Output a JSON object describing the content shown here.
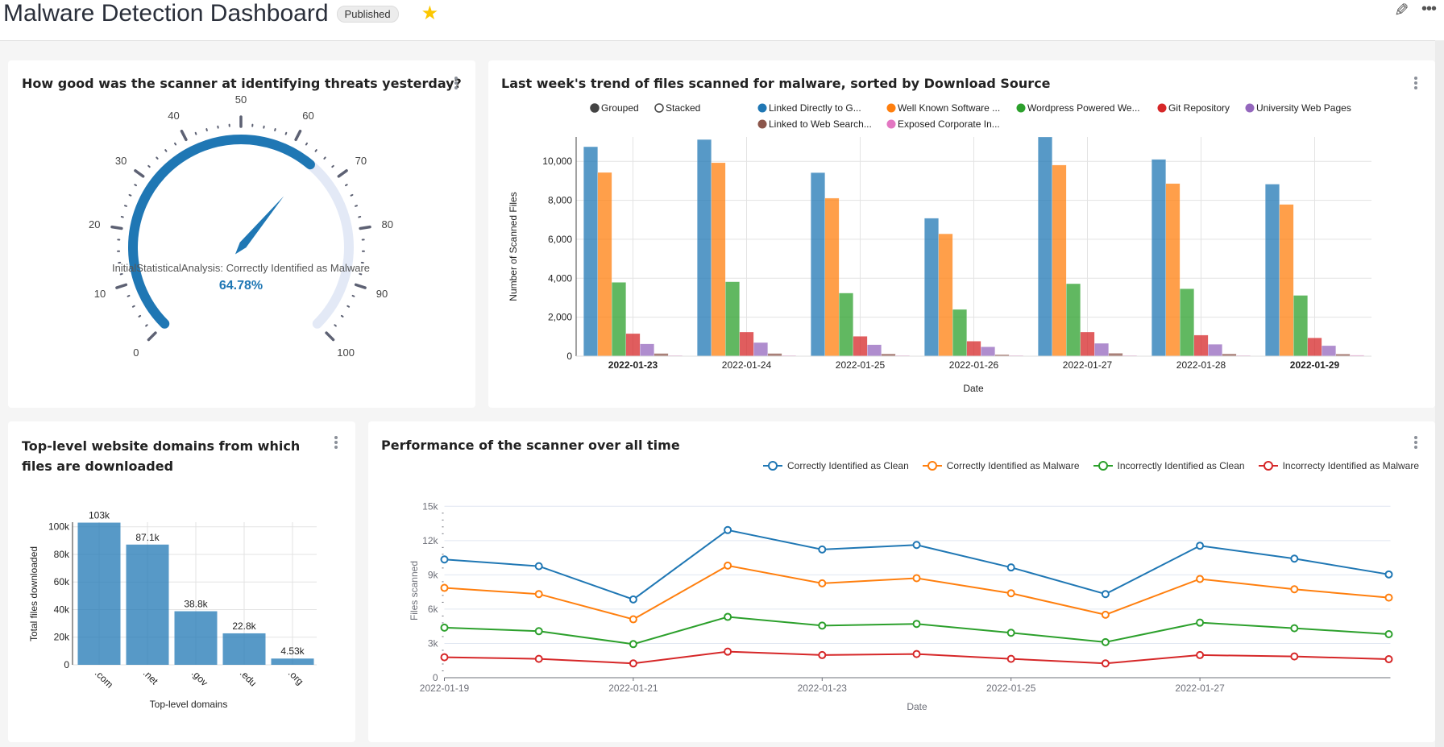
{
  "header": {
    "title": "Malware Detection Dashboard",
    "status_badge": "Published",
    "icons": {
      "favorite": "star-icon",
      "edit": "pencil-icon",
      "more": "more-horizontal-icon"
    },
    "star_color": "#fcc700"
  },
  "gauge": {
    "title": "How good was the scanner at identifying threats yesterday?",
    "series_label": "InitialStatisticalAnalysis: Correctly Identified as Malware",
    "value": 64.78,
    "value_text": "64.78%",
    "min": 0,
    "max": 100,
    "tick_labels": [
      "0",
      "10",
      "20",
      "30",
      "40",
      "50",
      "60",
      "70",
      "80",
      "90",
      "100"
    ],
    "colors": {
      "progress": "#1f77b4",
      "track": "#e3e9f6",
      "ticks": "#5d6173"
    }
  },
  "chart_data": [
    {
      "type": "bar",
      "title": "Last week's trend of files scanned for malware, sorted by Download Source",
      "mode_options": [
        {
          "label": "Grouped",
          "selected": true
        },
        {
          "label": "Stacked",
          "selected": false
        }
      ],
      "xlabel": "Date",
      "ylabel": "Number of Scanned Files",
      "ylim": [
        0,
        11250
      ],
      "y_ticks": [
        0,
        2000,
        4000,
        6000,
        8000,
        10000
      ],
      "y_tick_labels": [
        "0",
        "2,000",
        "4,000",
        "6,000",
        "8,000",
        "10,000"
      ],
      "categories": [
        "2022-01-23",
        "2022-01-24",
        "2022-01-25",
        "2022-01-26",
        "2022-01-27",
        "2022-01-28",
        "2022-01-29"
      ],
      "grid": true,
      "legend_position": "top",
      "series": [
        {
          "name": "Linked Directly to G...",
          "color": "#1f77b4",
          "values": [
            10750,
            11120,
            9420,
            7080,
            11250,
            10100,
            8830
          ]
        },
        {
          "name": "Well Known Software ...",
          "color": "#ff7f0e",
          "values": [
            9430,
            9930,
            8110,
            6280,
            9810,
            8860,
            7790
          ]
        },
        {
          "name": "Wordpress Powered We...",
          "color": "#2ca02c",
          "values": [
            3790,
            3820,
            3240,
            2400,
            3720,
            3460,
            3120
          ]
        },
        {
          "name": "Git Repository",
          "color": "#d62728",
          "values": [
            1160,
            1240,
            1020,
            770,
            1240,
            1080,
            940
          ]
        },
        {
          "name": "University Web Pages",
          "color": "#9467bd",
          "values": [
            630,
            700,
            590,
            480,
            660,
            610,
            540
          ]
        },
        {
          "name": "Linked to Web Search...",
          "color": "#8c564b",
          "values": [
            140,
            140,
            120,
            80,
            150,
            120,
            110
          ]
        },
        {
          "name": "Exposed Corporate In...",
          "color": "#e377c2",
          "values": [
            40,
            40,
            40,
            40,
            40,
            40,
            50
          ]
        }
      ]
    },
    {
      "type": "bar",
      "title": "Top-level website domains from which files are downloaded",
      "xlabel": "Top-level domains",
      "ylabel": "Total files downloaded",
      "ylim": [
        0,
        103000
      ],
      "y_ticks": [
        0,
        20000,
        40000,
        60000,
        80000,
        100000
      ],
      "y_tick_labels": [
        "0",
        "20k",
        "40k",
        "60k",
        "80k",
        "100k"
      ],
      "categories": [
        ".com",
        ".net",
        ".gov",
        ".edu",
        ".org"
      ],
      "values": [
        103000,
        87100,
        38800,
        22800,
        4530
      ],
      "data_labels": [
        "103k",
        "87.1k",
        "38.8k",
        "22.8k",
        "4.53k"
      ],
      "color": "#1f77b4",
      "grid": true
    },
    {
      "type": "line",
      "title": "Performance of the scanner over all time",
      "xlabel": "Date",
      "ylabel": "Files scanned",
      "ylim": [
        0,
        15000
      ],
      "y_ticks": [
        0,
        3000,
        6000,
        9000,
        12000,
        15000
      ],
      "y_tick_labels": [
        "0",
        "3k",
        "6k",
        "9k",
        "12k",
        "15k"
      ],
      "x": [
        "2022-01-19",
        "2022-01-20",
        "2022-01-21",
        "2022-01-22",
        "2022-01-23",
        "2022-01-24",
        "2022-01-25",
        "2022-01-26",
        "2022-01-27",
        "2022-01-28",
        "2022-01-29"
      ],
      "x_tick_labels": [
        "2022-01-19",
        "2022-01-21",
        "2022-01-23",
        "2022-01-25",
        "2022-01-27"
      ],
      "grid": true,
      "legend_position": "top-right",
      "series": [
        {
          "name": "Correctly Identified as Clean",
          "color": "#1f77b4",
          "values": [
            10350,
            9760,
            6850,
            12920,
            11220,
            11620,
            9650,
            7320,
            11550,
            10420,
            9040
          ]
        },
        {
          "name": "Correctly Identified as Malware",
          "color": "#ff7f0e",
          "values": [
            7860,
            7320,
            5110,
            9810,
            8260,
            8710,
            7390,
            5510,
            8640,
            7740,
            7010
          ]
        },
        {
          "name": "Incorrectly Identified as Clean",
          "color": "#2ca02c",
          "values": [
            4380,
            4070,
            2940,
            5320,
            4560,
            4710,
            3930,
            3110,
            4820,
            4330,
            3810
          ]
        },
        {
          "name": "Incorrecty Identified as Malware",
          "color": "#d62728",
          "values": [
            1790,
            1650,
            1250,
            2280,
            1980,
            2070,
            1650,
            1250,
            1980,
            1860,
            1620
          ]
        }
      ]
    }
  ]
}
